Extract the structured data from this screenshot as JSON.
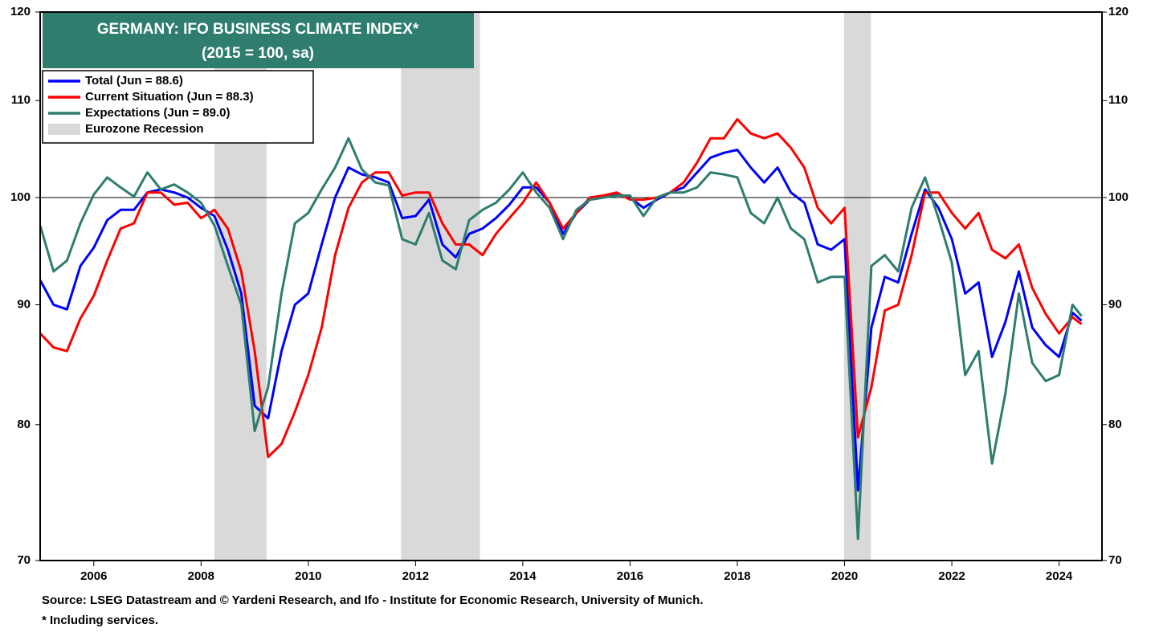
{
  "chart_data": {
    "type": "line",
    "title": "GERMANY: IFO BUSINESS  CLIMATE INDEX*",
    "subtitle": "(2015 = 100, sa)",
    "notes": [
      "Source: LSEG Datastream and © Yardeni Research, and Ifo - Institute for Economic Research, University of Munich.",
      "* Including services."
    ],
    "log_scale": true,
    "xlim": [
      2005.0,
      2024.8
    ],
    "xticks": [
      2006,
      2008,
      2010,
      2012,
      2014,
      2016,
      2018,
      2020,
      2022,
      2024
    ],
    "ylim": [
      70,
      120
    ],
    "yticks": [
      70,
      80,
      90,
      100,
      110,
      120
    ],
    "hline": 100,
    "recession_label": "Eurozone Recession",
    "recession_color": "#d9d9d9",
    "recessions": [
      [
        2008.25,
        2009.22
      ],
      [
        2011.73,
        2013.2
      ],
      [
        2019.99,
        2020.49
      ]
    ],
    "x": [
      2005.0,
      2005.25,
      2005.5,
      2005.75,
      2006.0,
      2006.25,
      2006.5,
      2006.75,
      2007.0,
      2007.25,
      2007.5,
      2007.75,
      2008.0,
      2008.25,
      2008.5,
      2008.75,
      2009.0,
      2009.25,
      2009.5,
      2009.75,
      2010.0,
      2010.25,
      2010.5,
      2010.75,
      2011.0,
      2011.25,
      2011.5,
      2011.75,
      2012.0,
      2012.25,
      2012.5,
      2012.75,
      2013.0,
      2013.25,
      2013.5,
      2013.75,
      2014.0,
      2014.25,
      2014.5,
      2014.75,
      2015.0,
      2015.25,
      2015.5,
      2015.75,
      2016.0,
      2016.25,
      2016.5,
      2016.75,
      2017.0,
      2017.25,
      2017.5,
      2017.75,
      2018.0,
      2018.25,
      2018.5,
      2018.75,
      2019.0,
      2019.25,
      2019.5,
      2019.75,
      2020.0,
      2020.25,
      2020.5,
      2020.75,
      2021.0,
      2021.25,
      2021.5,
      2021.75,
      2022.0,
      2022.25,
      2022.5,
      2022.75,
      2023.0,
      2023.25,
      2023.5,
      2023.75,
      2024.0,
      2024.25,
      2024.42
    ],
    "series": [
      {
        "name": "Total (Jun = 88.6)",
        "color": "#0000ff",
        "values": [
          92.2,
          90.0,
          89.6,
          93.5,
          95.2,
          97.8,
          98.8,
          98.8,
          100.5,
          100.8,
          100.5,
          100.0,
          99.0,
          98.2,
          95.0,
          91.0,
          81.5,
          80.5,
          86.0,
          90.0,
          91.0,
          95.5,
          100.0,
          103.0,
          102.3,
          102.0,
          101.5,
          98.0,
          98.2,
          99.8,
          95.5,
          94.3,
          96.5,
          97.0,
          98.0,
          99.3,
          101.0,
          101.0,
          99.5,
          96.5,
          98.5,
          99.8,
          100.0,
          100.3,
          100.0,
          99.0,
          99.8,
          100.5,
          101.0,
          102.5,
          104.0,
          104.5,
          104.8,
          103.0,
          101.5,
          103.0,
          100.5,
          99.5,
          95.5,
          95.0,
          96.0,
          75.0,
          88.0,
          92.5,
          92.0,
          96.5,
          100.8,
          99.0,
          96.0,
          91.0,
          92.0,
          85.5,
          88.5,
          93.0,
          88.0,
          86.5,
          85.5,
          89.3,
          88.6
        ]
      },
      {
        "name": "Current Situation (Jun = 88.3)",
        "color": "#ff0000",
        "values": [
          87.5,
          86.3,
          86.0,
          88.8,
          90.8,
          94.0,
          97.0,
          97.5,
          100.5,
          100.5,
          99.3,
          99.5,
          98.0,
          98.8,
          97.0,
          93.0,
          86.0,
          77.5,
          78.5,
          81.0,
          84.0,
          88.0,
          94.5,
          99.0,
          101.5,
          102.5,
          102.5,
          100.2,
          100.5,
          100.5,
          97.5,
          95.5,
          95.5,
          94.5,
          96.5,
          98.0,
          99.5,
          101.5,
          99.5,
          97.0,
          98.5,
          100.0,
          100.2,
          100.5,
          99.8,
          99.8,
          100.0,
          100.5,
          101.5,
          103.5,
          106.0,
          106.0,
          108.0,
          106.5,
          106.0,
          106.5,
          105.0,
          103.0,
          99.0,
          97.5,
          99.0,
          79.0,
          83.0,
          89.5,
          90.0,
          94.5,
          100.5,
          100.5,
          98.5,
          97.0,
          98.5,
          95.0,
          94.2,
          95.5,
          91.5,
          89.2,
          87.5,
          88.9,
          88.3
        ]
      },
      {
        "name": "Expectations (Jun = 89.0)",
        "color": "#2e7d6e",
        "values": [
          97.3,
          93.0,
          94.0,
          97.5,
          100.3,
          102.0,
          101.0,
          100.1,
          102.5,
          100.8,
          101.3,
          100.5,
          99.5,
          97.3,
          93.5,
          90.0,
          79.5,
          83.0,
          91.0,
          97.5,
          98.5,
          100.8,
          103.0,
          106.0,
          102.8,
          101.5,
          101.2,
          96.0,
          95.5,
          98.5,
          94.0,
          93.2,
          97.8,
          98.8,
          99.5,
          100.8,
          102.5,
          100.5,
          99.0,
          96.0,
          98.8,
          99.8,
          100.0,
          100.2,
          100.2,
          98.2,
          100.0,
          100.5,
          100.5,
          101.0,
          102.5,
          102.3,
          102.0,
          98.5,
          97.5,
          100.0,
          97.0,
          96.0,
          92.0,
          92.5,
          92.5,
          71.5,
          93.5,
          94.5,
          93.0,
          99.0,
          102.0,
          98.0,
          93.8,
          84.0,
          86.0,
          77.0,
          82.5,
          91.0,
          85.0,
          83.5,
          84.0,
          90.0,
          89.0
        ]
      }
    ]
  }
}
